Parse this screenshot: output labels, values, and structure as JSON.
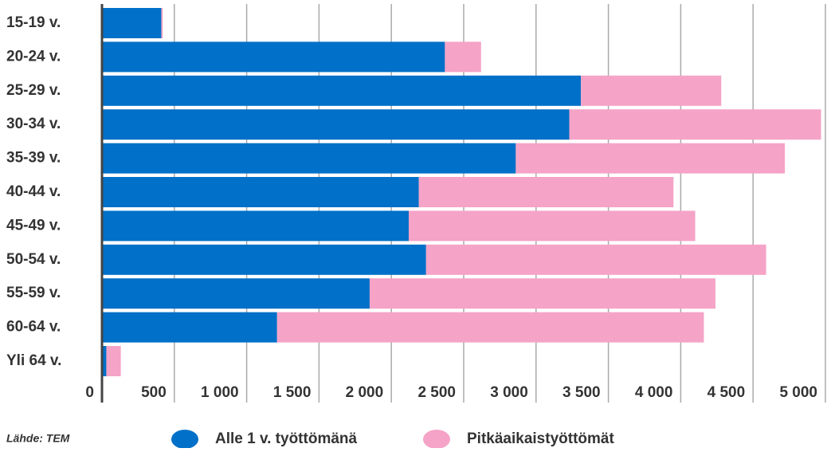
{
  "chart_data": {
    "type": "stacked-barh",
    "categories": [
      "15-19 v.",
      "20-24 v.",
      "25-29 v.",
      "30-34 v.",
      "35-39 v.",
      "40-44 v.",
      "45-49 v.",
      "50-54 v.",
      "55-59 v.",
      "60-64 v.",
      "Yli 64 v."
    ],
    "series": [
      {
        "name": "Alle 1 v. työttömänä",
        "color": "#0070c8",
        "values": [
          410,
          2370,
          3310,
          3230,
          2860,
          2190,
          2120,
          2240,
          1850,
          1210,
          30
        ]
      },
      {
        "name": "Pitkäaikaistyöttömät",
        "color": "#f5a3c7",
        "values": [
          10,
          250,
          970,
          1740,
          1860,
          1760,
          1980,
          2350,
          2390,
          2950,
          100
        ]
      }
    ],
    "xlim": [
      0,
      5000
    ],
    "xticks": [
      0,
      500,
      {
        "value": 1000,
        "label": "1 000"
      },
      {
        "value": 1500,
        "label": "1 500"
      },
      {
        "value": 2000,
        "label": "2 000"
      },
      {
        "value": 2500,
        "label": "2 500"
      },
      {
        "value": 3000,
        "label": "3 000"
      },
      {
        "value": 3500,
        "label": "3 500"
      },
      {
        "value": 4000,
        "label": "4 000"
      },
      {
        "value": 4500,
        "label": "4 500"
      },
      {
        "value": 5000,
        "label": "5 000"
      }
    ],
    "grid": true,
    "source": "Lähde: TEM"
  }
}
